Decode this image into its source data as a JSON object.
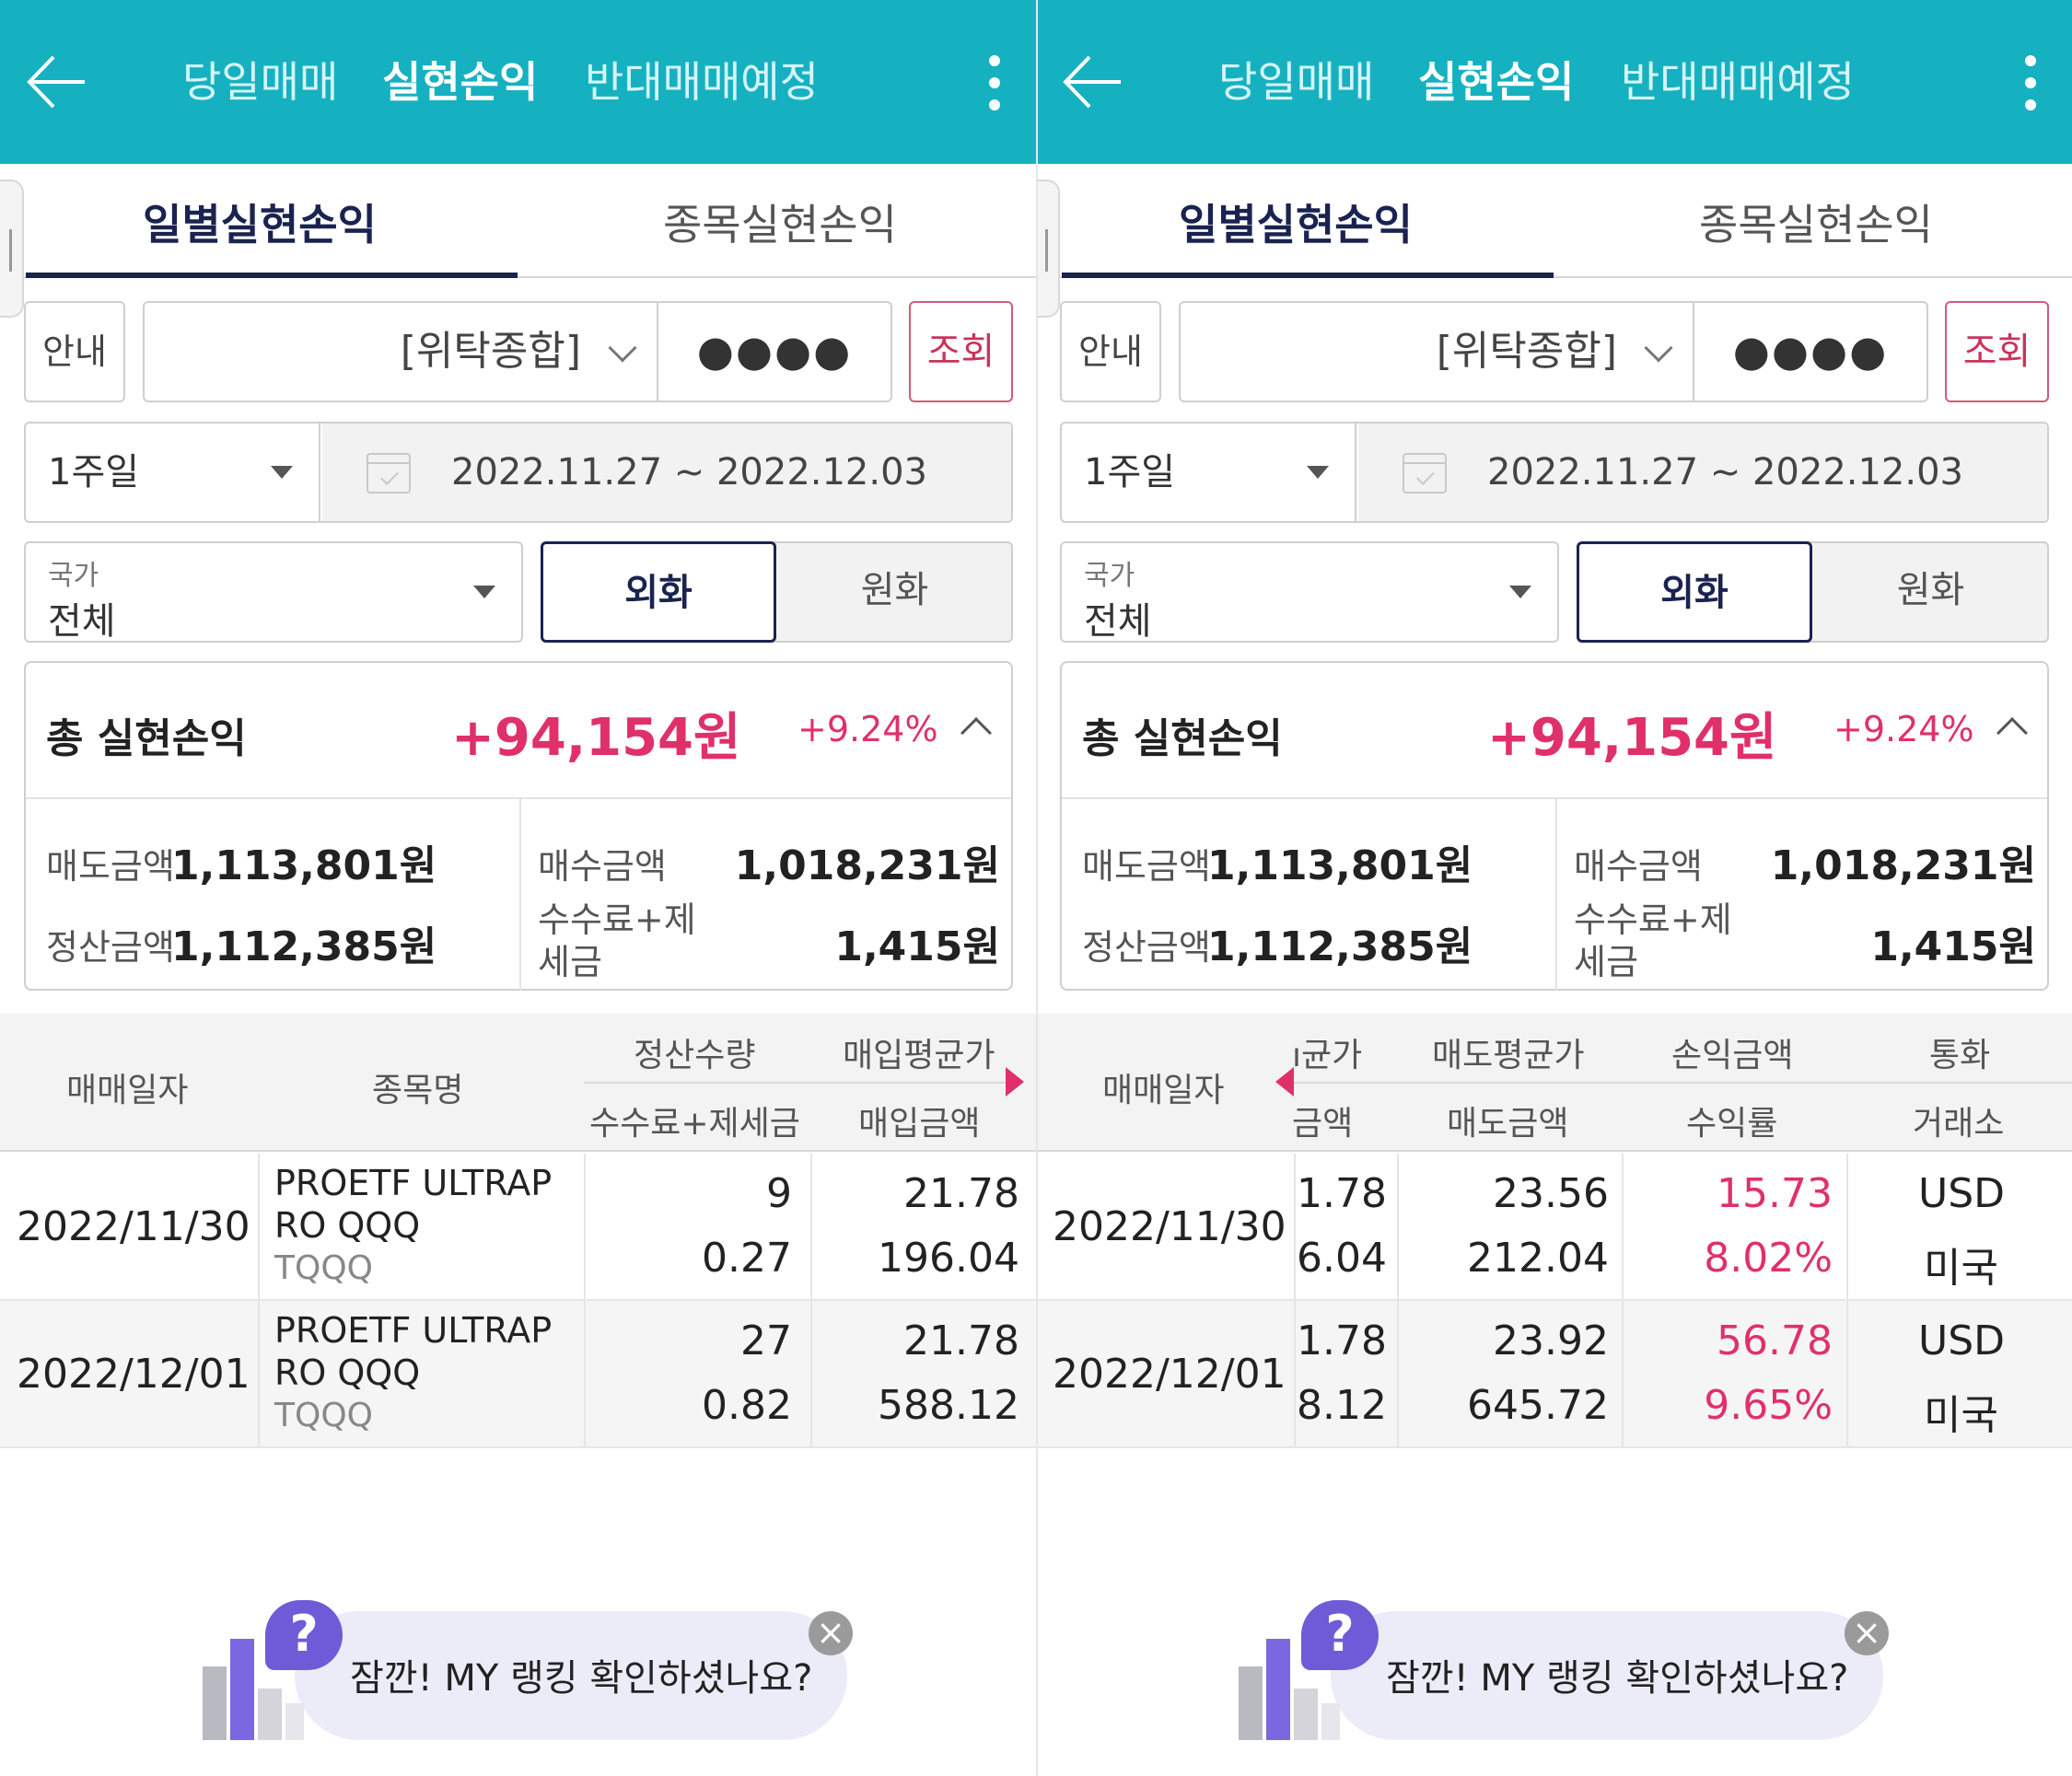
{
  "header": {
    "tabs": [
      "당일매매",
      "실현손익",
      "반대매매예정"
    ],
    "active_tab": "실현손익"
  },
  "subtabs": [
    "일별실현손익",
    "종목실현손익"
  ],
  "account": {
    "info_label": "안내",
    "account_select": "[위탁종합]",
    "password_mask": "●●●●",
    "search_label": "조회"
  },
  "period": {
    "select": "1주일",
    "range": "2022.11.27 ~ 2022.12.03"
  },
  "country": {
    "label": "국가",
    "value": "전체"
  },
  "currency": {
    "foreign": "외화",
    "won": "원화",
    "selected": "외화"
  },
  "summary": {
    "title": "총 실현손익",
    "amount": "+94,154원",
    "rate": "+9.24%",
    "sell_label": "매도금액",
    "sell_value": "1,113,801원",
    "buy_label": "매수금액",
    "buy_value": "1,018,231원",
    "settle_label": "정산금액",
    "settle_value": "1,112,385원",
    "fee_label_1": "수수료+제",
    "fee_label_2": "세금",
    "fee_value": "1,415원"
  },
  "table_left": {
    "headers": {
      "date": "매매일자",
      "name": "종목명",
      "qty": "정산수량",
      "fee": "수수료+제세금",
      "avg_buy": "매입평균가",
      "buy_amt": "매입금액"
    },
    "rows": [
      {
        "date": "2022/11/30",
        "name1": "PROETF ULTRAP",
        "name2": "RO QQQ",
        "ticker": "TQQQ",
        "qty": "9",
        "fee": "0.27",
        "avg_buy": "21.78",
        "buy_amt": "196.04"
      },
      {
        "date": "2022/12/01",
        "name1": "PROETF ULTRAP",
        "name2": "RO QQQ",
        "ticker": "TQQQ",
        "qty": "27",
        "fee": "0.82",
        "avg_buy": "21.78",
        "buy_amt": "588.12"
      }
    ]
  },
  "table_right": {
    "headers": {
      "date": "매매일자",
      "avg_buy_clip": "ı균가",
      "buy_amt_clip": "금액",
      "avg_sell": "매도평균가",
      "sell_amt": "매도금액",
      "pnl": "손익금액",
      "rate": "수익률",
      "currency": "통화",
      "exchange": "거래소"
    },
    "rows": [
      {
        "date": "2022/11/30",
        "avg_buy_clip": "1.78",
        "buy_amt_clip": "6.04",
        "avg_sell": "23.56",
        "sell_amt": "212.04",
        "pnl": "15.73",
        "rate": "8.02%",
        "currency": "USD",
        "exchange": "미국"
      },
      {
        "date": "2022/12/01",
        "avg_buy_clip": "1.78",
        "buy_amt_clip": "8.12",
        "avg_sell": "23.92",
        "sell_amt": "645.72",
        "pnl": "56.78",
        "rate": "9.65%",
        "currency": "USD",
        "exchange": "미국"
      }
    ]
  },
  "ad": {
    "text": "잠깐! MY 랭킹 확인하셨나요?",
    "question_mark": "?",
    "close_glyph": "×"
  },
  "icons": [
    "back-arrow-icon",
    "kebab-menu-icon",
    "chevron-down-icon",
    "dropdown-triangle-icon",
    "calendar-icon",
    "chevron-up-icon",
    "scroll-right-arrow-icon",
    "scroll-left-arrow-icon",
    "close-icon"
  ],
  "colors": {
    "header_bg": "#16b1c1",
    "accent_navy": "#1a2350",
    "profit_pink": "#e0306a"
  }
}
